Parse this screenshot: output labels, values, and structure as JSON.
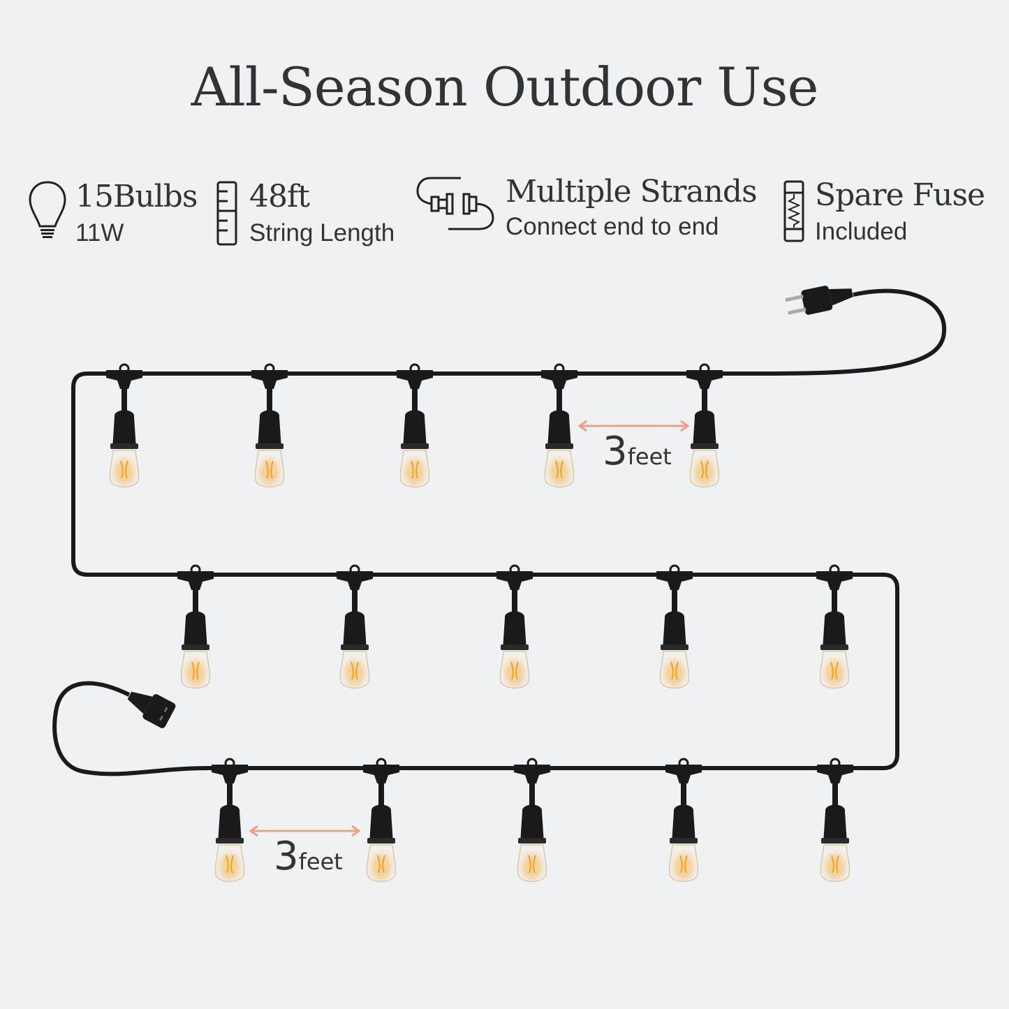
{
  "title": "All-Season Outdoor Use",
  "features": [
    {
      "icon": "bulb-icon",
      "main": "15Bulbs",
      "sub": "11W"
    },
    {
      "icon": "ruler-icon",
      "main": "48ft",
      "sub": "String Length"
    },
    {
      "icon": "plug-connect-icon",
      "main": "Multiple Strands",
      "sub": "Connect end to end"
    },
    {
      "icon": "fuse-icon",
      "main": "Spare Fuse",
      "sub": "Included"
    }
  ],
  "spacing_labels": [
    {
      "number": "3",
      "unit": "feet"
    },
    {
      "number": "3",
      "unit": "feet"
    }
  ],
  "colors": {
    "background": "#eff1f3",
    "cable": "#1a1a1a",
    "arrow": "#e9a283",
    "glow": "#f5b84a"
  }
}
